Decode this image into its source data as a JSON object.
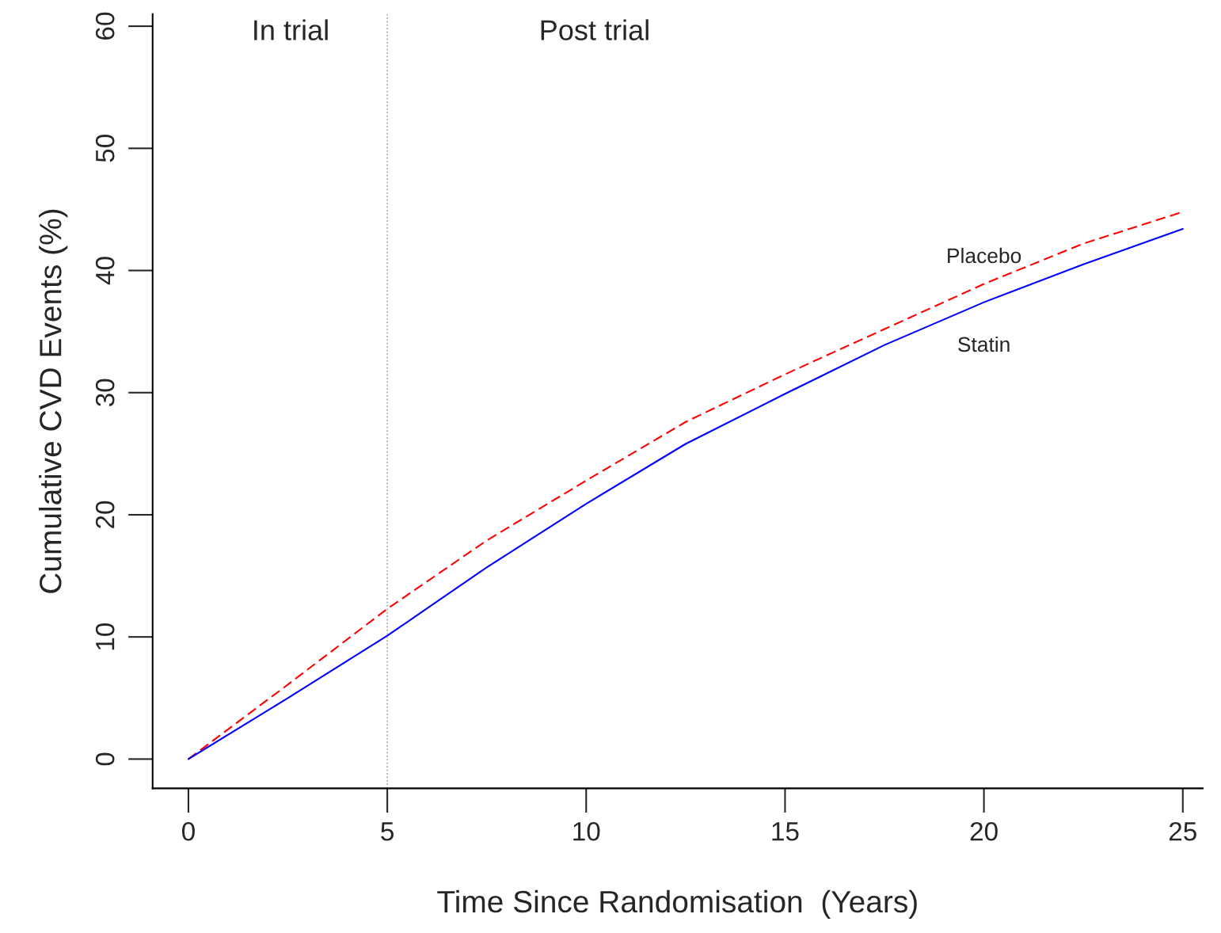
{
  "chart_data": {
    "type": "line",
    "xlabel": "Time Since Randomisation  (Years)",
    "ylabel": "Cumulative CVD Events (%)",
    "x": [
      0,
      2.5,
      5,
      7.5,
      10,
      12.5,
      15,
      17.5,
      20,
      22.5,
      25
    ],
    "series": [
      {
        "name": "Placebo",
        "color": "#ff0000",
        "line_style": "dashed",
        "values": [
          0,
          6.1,
          12.3,
          17.9,
          22.8,
          27.6,
          31.5,
          35.2,
          38.9,
          42.2,
          44.8
        ]
      },
      {
        "name": "Statin",
        "color": "#0000ff",
        "line_style": "solid",
        "values": [
          0,
          5.0,
          10.1,
          15.7,
          20.9,
          25.8,
          29.9,
          33.9,
          37.4,
          40.5,
          43.4
        ]
      }
    ],
    "xlim": [
      -0.9,
      25.5
    ],
    "ylim": [
      -2.4,
      61
    ],
    "xticks": [
      0,
      5,
      10,
      15,
      20,
      25
    ],
    "yticks": [
      0,
      10,
      20,
      30,
      40,
      50,
      60
    ],
    "ref_lines": [
      {
        "axis": "x",
        "value": 5,
        "color": "#a0a0a0",
        "line_style": "dotted"
      }
    ],
    "annotations": [
      "In trial",
      "Post trial"
    ],
    "grid": false,
    "legend": false,
    "marker": "none"
  }
}
